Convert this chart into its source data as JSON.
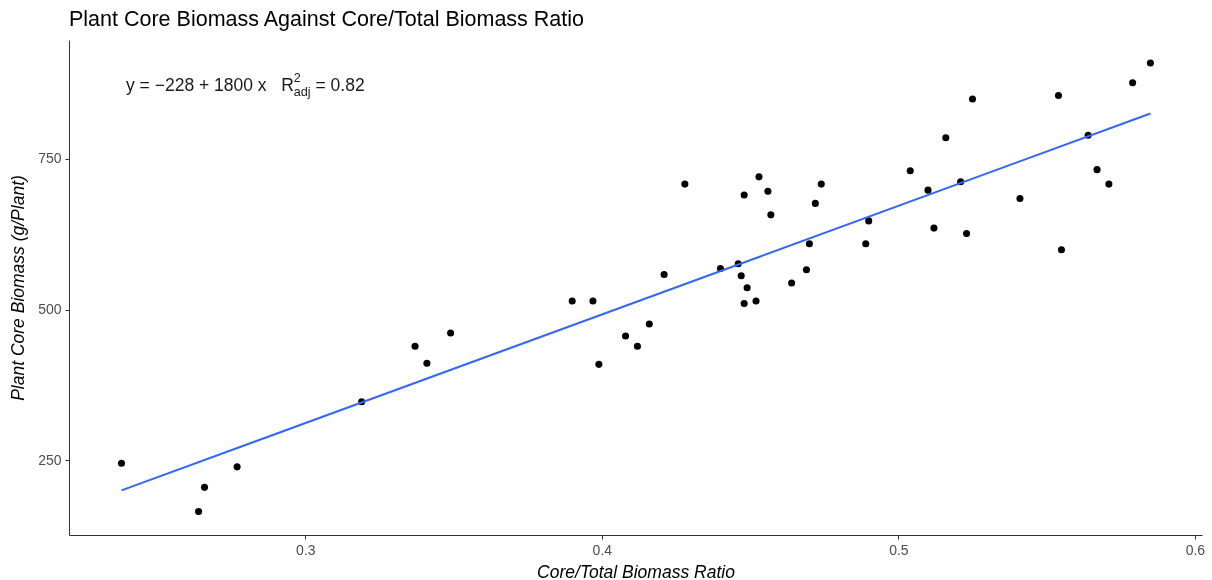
{
  "chart_data": {
    "type": "scatter",
    "title": "Plant Core Biomass Against Core/Total Biomass Ratio",
    "xlabel": "Core/Total Biomass Ratio",
    "ylabel": "Plant Core Biomass (g/Plant)",
    "annotations": [
      "y = −228 + 1800 x   R$^{2}$$_{adj}$ = 0.82"
    ],
    "xlim": [
      0.2203,
      0.6024
    ],
    "ylim": [
      126,
      947
    ],
    "xticks": [
      0.3,
      0.4,
      0.5,
      0.6
    ],
    "yticks": [
      250,
      500,
      750
    ],
    "series": [
      {
        "type": "scatter",
        "color": "#000000",
        "marker": "circle",
        "x": [
          0.238,
          0.264,
          0.266,
          0.277,
          0.319,
          0.337,
          0.341,
          0.349,
          0.39,
          0.397,
          0.399,
          0.408,
          0.412,
          0.416,
          0.421,
          0.428,
          0.44,
          0.446,
          0.447,
          0.448,
          0.448,
          0.449,
          0.452,
          0.453,
          0.456,
          0.457,
          0.464,
          0.469,
          0.47,
          0.472,
          0.474,
          0.489,
          0.49,
          0.504,
          0.51,
          0.512,
          0.516,
          0.521,
          0.523,
          0.525,
          0.541,
          0.554,
          0.555,
          0.564,
          0.567,
          0.571,
          0.579,
          0.585
        ],
        "values": [
          245,
          165,
          205,
          239,
          347,
          439,
          411,
          461,
          514,
          514,
          409,
          456,
          439,
          476,
          558,
          708,
          568,
          576,
          556,
          510,
          690,
          536,
          514,
          720,
          696,
          657,
          544,
          566,
          609,
          676,
          708,
          609,
          647,
          730,
          698,
          635,
          785,
          712,
          626,
          849,
          684,
          855,
          599,
          789,
          732,
          708,
          876,
          909
        ]
      },
      {
        "type": "line",
        "color": "#3366ff",
        "x": [
          0.238,
          0.585
        ],
        "values": [
          200,
          825
        ]
      }
    ]
  }
}
